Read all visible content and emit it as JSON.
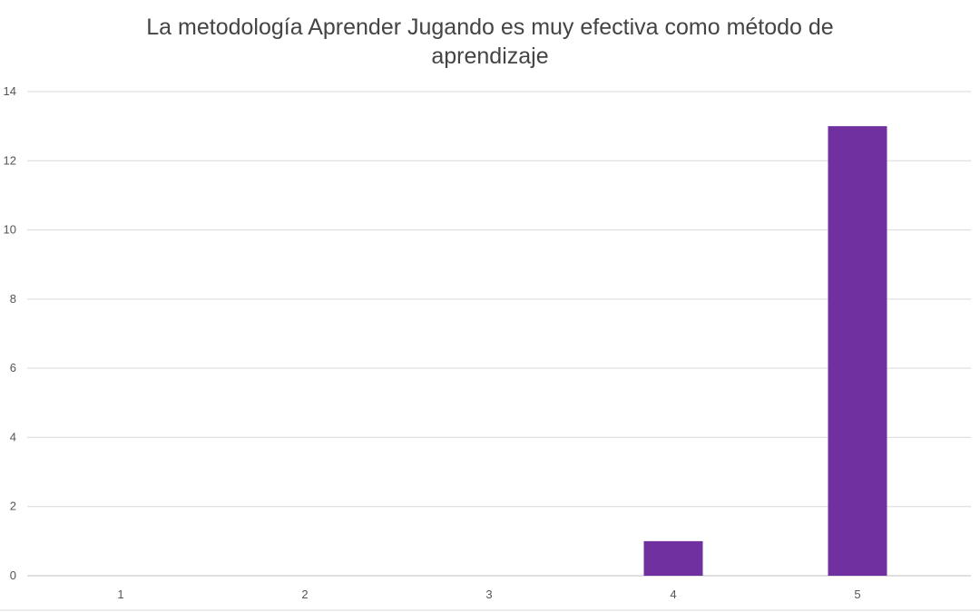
{
  "chart_data": {
    "type": "bar",
    "title": "La metodología Aprender Jugando es muy efectiva como método de aprendizaje",
    "categories": [
      "1",
      "2",
      "3",
      "4",
      "5"
    ],
    "values": [
      0,
      0,
      0,
      1,
      13
    ],
    "xlabel": "",
    "ylabel": "",
    "ylim": [
      0,
      14
    ],
    "yticks": [
      "0",
      "2",
      "4",
      "6",
      "8",
      "10",
      "12",
      "14"
    ],
    "grid": true,
    "legend": "none",
    "bar_color": "#7030a0"
  }
}
